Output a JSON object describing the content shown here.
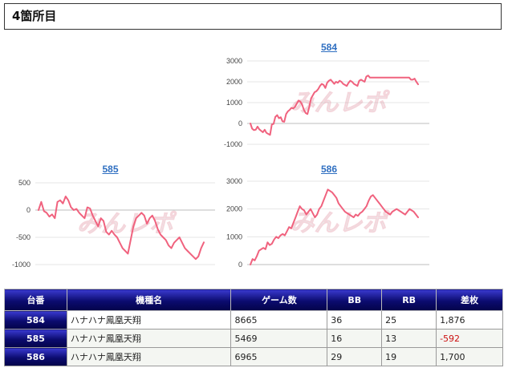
{
  "heading": "4箇所目",
  "watermark": "みんレポ",
  "colors": {
    "line": "#f0627e",
    "grid": "#e6e6e6",
    "zero": "#bdbdbd",
    "tick": "#444444"
  },
  "chart_data": [
    {
      "type": "line",
      "title": "584",
      "ylim": [
        -1000,
        3000
      ],
      "yticks": [
        -1000,
        0,
        1000,
        2000,
        3000
      ],
      "series": [
        {
          "values": [
            0,
            -250,
            -320,
            -300,
            -150,
            -280,
            -350,
            -420,
            -300,
            -450,
            -500,
            -550,
            -50,
            -20,
            320,
            400,
            250,
            300,
            100,
            80,
            450,
            580,
            650,
            750,
            720,
            800,
            950,
            1100,
            1050,
            900,
            650,
            500,
            450,
            800,
            1200,
            1350,
            1500,
            1550,
            1650,
            1800,
            1900,
            1850,
            1700,
            1950,
            2050,
            2100,
            2000,
            1900,
            2000,
            1950,
            2050,
            2000,
            1900,
            1850,
            1800,
            1950,
            2050,
            2000,
            1900,
            1850,
            1800,
            2050,
            2100,
            2050,
            2000,
            2250,
            2300,
            2200,
            2200,
            2200,
            2200,
            2200,
            2200,
            2200,
            2200,
            2200,
            2200,
            2200,
            2200,
            2200,
            2200,
            2200,
            2200,
            2200,
            2200,
            2200,
            2200,
            2200,
            2200,
            2200,
            2100,
            2100,
            2150,
            2000,
            1876
          ]
        }
      ]
    },
    {
      "type": "line",
      "title": "585",
      "ylim": [
        -1000,
        500
      ],
      "yticks": [
        -1000,
        -500,
        0,
        500
      ],
      "series": [
        {
          "values": [
            0,
            150,
            -20,
            -50,
            -120,
            -80,
            -150,
            150,
            180,
            120,
            250,
            180,
            50,
            0,
            20,
            -50,
            -100,
            -150,
            50,
            30,
            -100,
            -200,
            -300,
            -150,
            -200,
            -400,
            -450,
            -380,
            -450,
            -500,
            -600,
            -700,
            -750,
            -800,
            -550,
            -300,
            -150,
            -100,
            -50,
            -100,
            -250,
            -150,
            -100,
            -200,
            -350,
            -450,
            -500,
            -550,
            -650,
            -700,
            -600,
            -550,
            -500,
            -600,
            -700,
            -750,
            -800,
            -850,
            -900,
            -850,
            -700,
            -592
          ]
        }
      ]
    },
    {
      "type": "line",
      "title": "586",
      "ylim": [
        0,
        3000
      ],
      "yticks": [
        0,
        1000,
        2000,
        3000
      ],
      "series": [
        {
          "values": [
            0,
            200,
            150,
            300,
            500,
            550,
            600,
            550,
            800,
            700,
            750,
            900,
            1000,
            950,
            1050,
            1100,
            1050,
            1200,
            1350,
            1300,
            1500,
            1700,
            1900,
            2100,
            2000,
            1950,
            1800,
            1900,
            2000,
            1850,
            1700,
            1800,
            2000,
            2100,
            2300,
            2500,
            2700,
            2650,
            2600,
            2500,
            2400,
            2200,
            2100,
            2000,
            1900,
            1850,
            1800,
            1750,
            1700,
            1800,
            1750,
            1850,
            1900,
            2000,
            2100,
            2300,
            2450,
            2500,
            2400,
            2300,
            2200,
            2100,
            2000,
            1900,
            1850,
            1800,
            1900,
            1950,
            2000,
            1950,
            1900,
            1850,
            1800,
            1900,
            2000,
            1950,
            1900,
            1800,
            1700
          ]
        }
      ]
    }
  ],
  "table": {
    "headers": [
      "台番",
      "機種名",
      "ゲーム数",
      "BB",
      "RB",
      "差枚"
    ],
    "rows": [
      {
        "num": "584",
        "model": "ハナハナ鳳凰天翔",
        "games": "8665",
        "bb": "36",
        "rb": "25",
        "diff": "1,876"
      },
      {
        "num": "585",
        "model": "ハナハナ鳳凰天翔",
        "games": "5469",
        "bb": "16",
        "rb": "13",
        "diff": "-592"
      },
      {
        "num": "586",
        "model": "ハナハナ鳳凰天翔",
        "games": "6965",
        "bb": "29",
        "rb": "19",
        "diff": "1,700"
      }
    ]
  }
}
